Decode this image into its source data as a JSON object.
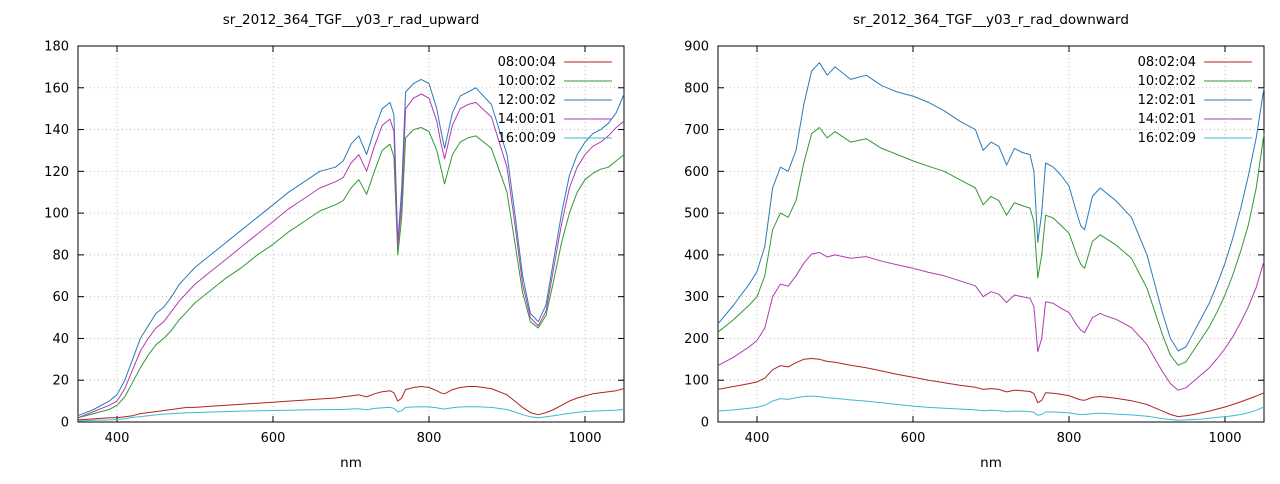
{
  "page": {
    "background": "#ffffff"
  },
  "chart_data": [
    {
      "id": "upward",
      "type": "line",
      "title": "sr_2012_364_TGF__y03_r_rad_upward",
      "xlabel": "nm",
      "xlim": [
        350,
        1050
      ],
      "ylim": [
        0,
        180
      ],
      "ytick_step": 20,
      "xticks": [
        400,
        600,
        800,
        1000
      ],
      "grid": true,
      "legend_position": "top-right",
      "x": [
        350,
        370,
        390,
        400,
        410,
        420,
        430,
        440,
        450,
        460,
        470,
        480,
        490,
        500,
        520,
        540,
        560,
        580,
        600,
        620,
        640,
        660,
        680,
        690,
        700,
        710,
        720,
        730,
        740,
        750,
        755,
        760,
        765,
        770,
        780,
        790,
        800,
        810,
        815,
        820,
        830,
        840,
        850,
        860,
        880,
        900,
        910,
        920,
        930,
        940,
        950,
        960,
        970,
        980,
        990,
        1000,
        1010,
        1020,
        1030,
        1040,
        1050
      ],
      "series": [
        {
          "name": "08:00:04",
          "color": "#b22222",
          "values": [
            1,
            1.5,
            2,
            2,
            2.5,
            3,
            4,
            4.5,
            5,
            5.5,
            6,
            6.5,
            7,
            7,
            7.5,
            8,
            8.5,
            9,
            9.5,
            10,
            10.5,
            11,
            11.5,
            12,
            12.5,
            13,
            12,
            13.5,
            14.5,
            15,
            14,
            10,
            11.5,
            15.5,
            16.5,
            17,
            16.5,
            15,
            14,
            13.5,
            15.5,
            16.5,
            17,
            17,
            16,
            13,
            10,
            7,
            4.5,
            3.5,
            4.5,
            6,
            8,
            10,
            11.5,
            12.5,
            13.5,
            14,
            14.5,
            15,
            16
          ]
        },
        {
          "name": "10:00:02",
          "color": "#339933",
          "values": [
            2,
            4,
            6,
            8,
            12,
            19,
            26,
            32,
            37,
            40,
            44,
            49,
            53,
            57,
            63,
            69,
            74,
            80,
            85,
            91,
            96,
            101,
            104,
            106,
            112,
            116,
            109,
            120,
            130,
            133,
            127,
            80,
            98,
            136,
            140,
            141,
            139,
            130,
            122,
            114,
            128,
            134,
            136,
            137,
            131,
            110,
            86,
            62,
            48,
            45,
            51,
            68,
            86,
            100,
            110,
            116,
            119,
            121,
            122,
            125,
            128
          ]
        },
        {
          "name": "12:00:02",
          "color": "#2b7bb9",
          "values": [
            3,
            6,
            10,
            13,
            20,
            30,
            40,
            46,
            52,
            55,
            60,
            66,
            70,
            74,
            80,
            86,
            92,
            98,
            104,
            110,
            115,
            120,
            122,
            125,
            133,
            137,
            128,
            140,
            150,
            153,
            147,
            86,
            112,
            158,
            162,
            164,
            162,
            150,
            140,
            131,
            148,
            156,
            158,
            160,
            152,
            128,
            100,
            70,
            52,
            48,
            56,
            78,
            100,
            118,
            128,
            134,
            138,
            140,
            143,
            148,
            157
          ]
        },
        {
          "name": "14:00:01",
          "color": "#b13cb1",
          "values": [
            2,
            5,
            8,
            10,
            16,
            25,
            34,
            40,
            45,
            48,
            53,
            58,
            62,
            66,
            72,
            78,
            84,
            90,
            96,
            102,
            107,
            112,
            115,
            117,
            124,
            128,
            120,
            132,
            142,
            145,
            139,
            84,
            105,
            150,
            155,
            157,
            155,
            144,
            134,
            126,
            142,
            150,
            152,
            153,
            146,
            122,
            95,
            66,
            50,
            46,
            53,
            74,
            95,
            112,
            122,
            128,
            132,
            134,
            137,
            141,
            144
          ]
        },
        {
          "name": "16:00:09",
          "color": "#3fb9d3",
          "values": [
            0.5,
            0.8,
            1,
            1.2,
            1.6,
            2.2,
            2.6,
            3,
            3.4,
            3.8,
            4,
            4.2,
            4.4,
            4.5,
            4.8,
            5,
            5.2,
            5.3,
            5.5,
            5.6,
            5.8,
            5.9,
            6,
            6,
            6.2,
            6.3,
            5.8,
            6.5,
            6.8,
            7,
            6.5,
            4.8,
            5.4,
            7,
            7.2,
            7.3,
            7.2,
            6.8,
            6.4,
            6.2,
            6.8,
            7.2,
            7.3,
            7.3,
            7,
            6,
            4.8,
            3.5,
            2.5,
            2,
            2.5,
            3,
            3.6,
            4.2,
            4.6,
            5,
            5.2,
            5.4,
            5.5,
            5.7,
            6
          ]
        }
      ]
    },
    {
      "id": "downward",
      "type": "line",
      "title": "sr_2012_364_TGF__y03_r_rad_downward",
      "xlabel": "nm",
      "xlim": [
        350,
        1050
      ],
      "ylim": [
        0,
        900
      ],
      "ytick_step": 100,
      "xticks": [
        400,
        600,
        800,
        1000
      ],
      "grid": true,
      "legend_position": "top-right",
      "x": [
        350,
        370,
        390,
        400,
        410,
        420,
        430,
        440,
        450,
        460,
        470,
        480,
        490,
        500,
        520,
        540,
        560,
        580,
        600,
        620,
        640,
        660,
        680,
        690,
        700,
        710,
        720,
        730,
        740,
        750,
        755,
        760,
        765,
        770,
        780,
        790,
        800,
        810,
        815,
        820,
        830,
        840,
        850,
        860,
        880,
        900,
        910,
        920,
        930,
        940,
        950,
        960,
        970,
        980,
        990,
        1000,
        1010,
        1020,
        1030,
        1040,
        1050
      ],
      "series": [
        {
          "name": "08:02:04",
          "color": "#b22222",
          "values": [
            78,
            85,
            92,
            96,
            105,
            125,
            135,
            132,
            142,
            150,
            152,
            150,
            145,
            143,
            136,
            130,
            122,
            114,
            107,
            100,
            94,
            88,
            83,
            78,
            80,
            78,
            72,
            76,
            75,
            73,
            68,
            46,
            52,
            70,
            69,
            66,
            63,
            56,
            53,
            52,
            59,
            61,
            59,
            57,
            51,
            42,
            34,
            26,
            18,
            13,
            15,
            18,
            22,
            26,
            31,
            36,
            42,
            48,
            55,
            62,
            70
          ]
        },
        {
          "name": "10:02:02",
          "color": "#339933",
          "values": [
            215,
            245,
            280,
            300,
            350,
            460,
            500,
            490,
            530,
            620,
            690,
            705,
            680,
            695,
            670,
            678,
            655,
            640,
            625,
            612,
            600,
            580,
            560,
            520,
            540,
            530,
            495,
            525,
            518,
            512,
            480,
            345,
            400,
            495,
            488,
            470,
            452,
            400,
            378,
            368,
            432,
            448,
            436,
            424,
            392,
            320,
            264,
            208,
            160,
            136,
            144,
            172,
            200,
            228,
            264,
            304,
            352,
            408,
            472,
            560,
            690
          ]
        },
        {
          "name": "12:02:01",
          "color": "#2b7bb9",
          "values": [
            235,
            280,
            330,
            360,
            420,
            560,
            610,
            600,
            650,
            760,
            840,
            860,
            830,
            850,
            820,
            830,
            805,
            790,
            780,
            765,
            745,
            720,
            700,
            650,
            670,
            660,
            615,
            655,
            645,
            640,
            600,
            430,
            500,
            620,
            610,
            590,
            565,
            500,
            470,
            460,
            540,
            560,
            545,
            530,
            490,
            400,
            330,
            260,
            200,
            170,
            180,
            215,
            250,
            285,
            330,
            380,
            440,
            510,
            590,
            680,
            800
          ]
        },
        {
          "name": "14:02:01",
          "color": "#b13cb1",
          "values": [
            135,
            155,
            180,
            195,
            225,
            300,
            330,
            325,
            350,
            380,
            402,
            406,
            395,
            400,
            392,
            396,
            385,
            376,
            368,
            358,
            350,
            338,
            326,
            300,
            312,
            306,
            286,
            304,
            300,
            296,
            276,
            168,
            200,
            288,
            284,
            272,
            262,
            232,
            220,
            214,
            250,
            260,
            252,
            246,
            226,
            185,
            152,
            120,
            92,
            76,
            82,
            98,
            114,
            130,
            152,
            176,
            204,
            238,
            276,
            322,
            385
          ]
        },
        {
          "name": "16:02:09",
          "color": "#3fb9d3",
          "values": [
            26,
            29,
            33,
            35,
            40,
            50,
            56,
            54,
            58,
            61,
            62,
            61,
            58,
            57,
            53,
            50,
            46,
            42,
            38,
            35,
            33,
            31,
            29,
            27,
            28,
            27,
            25,
            26,
            26,
            25,
            23,
            16,
            18,
            24,
            24,
            23,
            22,
            19,
            18,
            18,
            20,
            21,
            20,
            19,
            17,
            14,
            11,
            8,
            6,
            4,
            5,
            6,
            7,
            9,
            11,
            13,
            15,
            18,
            22,
            28,
            36
          ]
        }
      ]
    }
  ]
}
